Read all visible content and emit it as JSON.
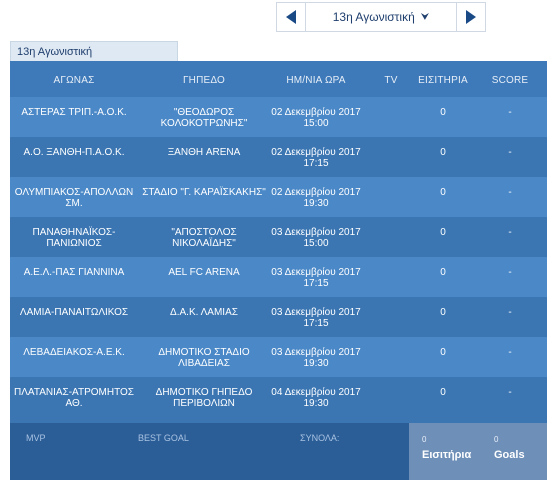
{
  "nav": {
    "selected_round": "13η Αγωνιστική"
  },
  "tab": {
    "label": "13η Αγωνιστική"
  },
  "headers": [
    "ΑΓΩΝΑΣ",
    "ΓΗΠΕΔΟ",
    "ΗΜ/ΝΙΑ ΩΡΑ",
    "TV",
    "ΕΙΣΙΤΗΡΙΑ",
    "SCORE"
  ],
  "matches": [
    {
      "match": "ΑΣΤΕΡΑΣ ΤΡΙΠ.-Α.Ο.Κ.",
      "venue": "\"ΘΕΟΔΩΡΟΣ ΚΟΛΟΚΟΤΡΩΝΗΣ\"",
      "date": "02 Δεκεμβρίου 2017",
      "time": "15:00",
      "tv": "",
      "tickets": "0",
      "score": "-"
    },
    {
      "match": "Α.Ο. ΞΑΝΘΗ-Π.Α.Ο.Κ.",
      "venue": "ΞΑΝΘΗ ARENA",
      "date": "02 Δεκεμβρίου 2017",
      "time": "17:15",
      "tv": "",
      "tickets": "0",
      "score": "-"
    },
    {
      "match": "ΟΛΥΜΠΙΑΚΟΣ-ΑΠΟΛΛΩΝ ΣΜ.",
      "venue": "ΣΤΑΔΙΟ \"Γ. ΚΑΡΑΪΣΚΑΚΗΣ\"",
      "date": "02 Δεκεμβρίου 2017",
      "time": "19:30",
      "tv": "",
      "tickets": "0",
      "score": "-"
    },
    {
      "match": "ΠΑΝΑΘΗΝΑΪΚΟΣ-ΠΑΝΙΩΝΙΟΣ",
      "venue": "\"ΑΠΟΣΤΟΛΟΣ ΝΙΚΟΛΑΪΔΗΣ\"",
      "date": "03 Δεκεμβρίου 2017",
      "time": "15:00",
      "tv": "",
      "tickets": "0",
      "score": "-"
    },
    {
      "match": "Α.Ε.Λ.-ΠΑΣ ΓΙΑΝΝΙΝΑ",
      "venue": "AEL FC ARENA",
      "date": "03 Δεκεμβρίου 2017",
      "time": "17:15",
      "tv": "",
      "tickets": "0",
      "score": "-"
    },
    {
      "match": "ΛΑΜΙΑ-ΠΑΝΑΙΤΩΛΙΚΟΣ",
      "venue": "Δ.Α.Κ. ΛΑΜΙΑΣ",
      "date": "03 Δεκεμβρίου 2017",
      "time": "17:15",
      "tv": "",
      "tickets": "0",
      "score": "-"
    },
    {
      "match": "ΛΕΒΑΔΕΙΑΚΟΣ-Α.Ε.Κ.",
      "venue": "ΔΗΜΟΤΙΚΟ ΣΤΑΔΙΟ ΛΙΒΑΔΕΙΑΣ",
      "date": "03 Δεκεμβρίου 2017",
      "time": "19:30",
      "tv": "",
      "tickets": "0",
      "score": "-"
    },
    {
      "match": "ΠΛΑΤΑΝΙΑΣ-ΑΤΡΟΜΗΤΟΣ ΑΘ.",
      "venue": "ΔΗΜΟΤΙΚΟ ΓΗΠΕΔΟ ΠΕΡΙΒΟΛΙΩΝ",
      "date": "04 Δεκεμβρίου 2017",
      "time": "19:30",
      "tv": "",
      "tickets": "0",
      "score": "-"
    }
  ],
  "footer": {
    "mvp_label": "MVP",
    "best_goal_label": "BEST GOAL",
    "totals_label": "ΣΥΝΟΛΑ:",
    "tickets_total": "0",
    "tickets_label": "Εισιτήρια",
    "goals_total": "0",
    "goals_label": "Goals"
  },
  "colors": {
    "header_bg": "#3e7ab9",
    "row_odd": "#4a88c7",
    "row_even": "#3b76b3",
    "footer_bg": "#2b5d97",
    "stats_bg": "#6e8fb8",
    "arrow": "#1a4a86"
  },
  "icons": {
    "prev": "triangle-left-icon",
    "next": "triangle-right-icon",
    "dropdown": "chevron-down-icon"
  }
}
